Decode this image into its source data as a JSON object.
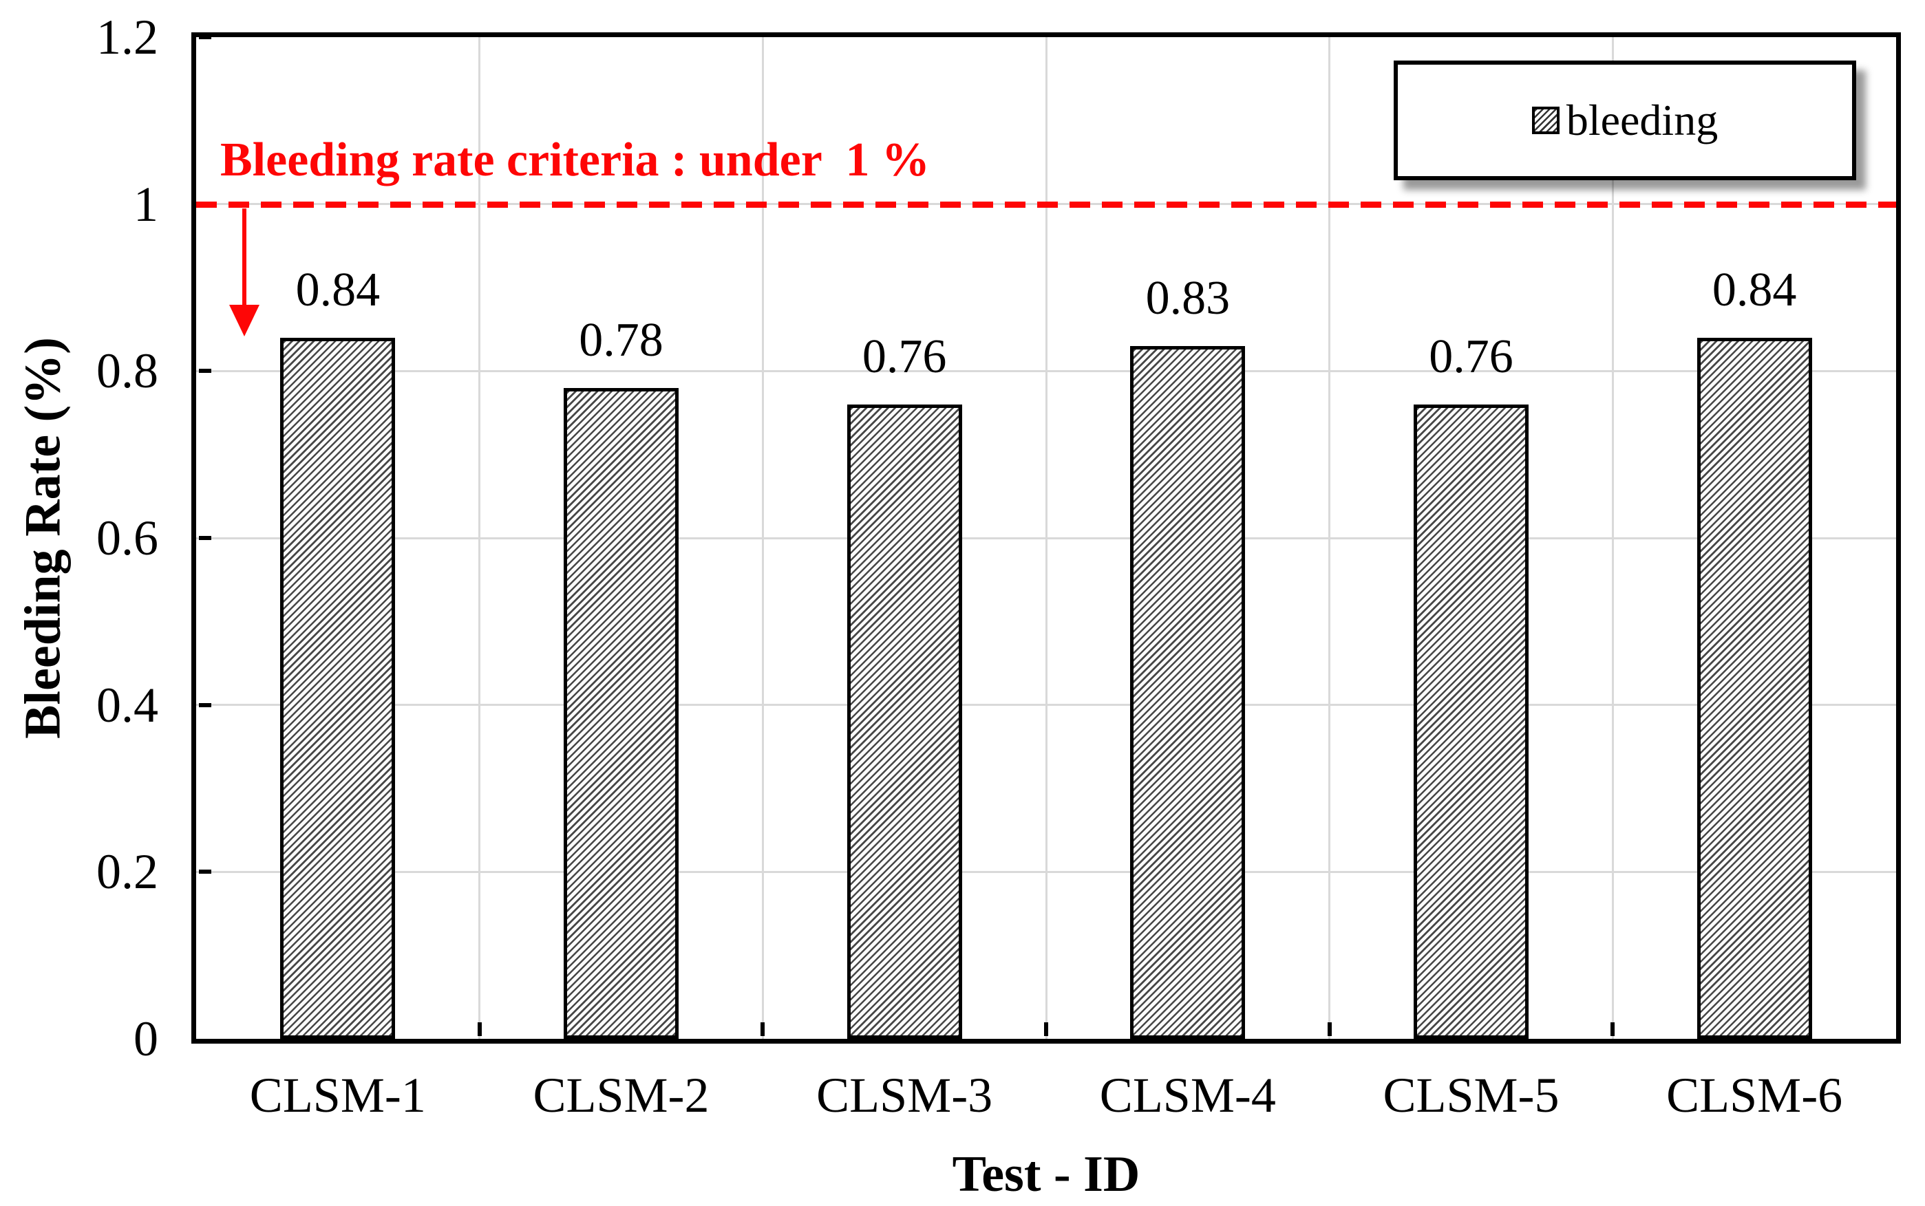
{
  "chart_data": {
    "type": "bar",
    "categories": [
      "CLSM-1",
      "CLSM-2",
      "CLSM-3",
      "CLSM-4",
      "CLSM-5",
      "CLSM-6"
    ],
    "values": [
      0.84,
      0.78,
      0.76,
      0.83,
      0.76,
      0.84
    ],
    "value_labels": [
      "0.84",
      "0.78",
      "0.76",
      "0.83",
      "0.76",
      "0.84"
    ],
    "title": "",
    "xlabel": "Test - ID",
    "ylabel": "Bleeding Rate (%)",
    "ylim": [
      0,
      1.2
    ],
    "yticks": [
      {
        "value": 0,
        "label": "0"
      },
      {
        "value": 0.2,
        "label": "0.2"
      },
      {
        "value": 0.4,
        "label": "0.4"
      },
      {
        "value": 0.6,
        "label": "0.6"
      },
      {
        "value": 0.8,
        "label": "0.8"
      },
      {
        "value": 1,
        "label": "1"
      },
      {
        "value": 1.2,
        "label": "1.2"
      }
    ],
    "grid": true,
    "legend": {
      "position": "top-right",
      "entries": [
        {
          "label": "bleeding",
          "pattern": "diagonal-hatch"
        }
      ]
    },
    "annotation": {
      "text": "Bleeding rate criteria : under  1 %",
      "line_value": 1.0,
      "line_style": "dashed",
      "arrow": "down-from-line"
    },
    "style": {
      "bar_fill": "diagonal-hatch",
      "hatch_color": "#474747",
      "bar_border_color": "#000000",
      "criteria_red": "#fe0606",
      "gridline_color": "#d9d9d9",
      "axis_color": "#000000",
      "background": "#ffffff"
    }
  }
}
